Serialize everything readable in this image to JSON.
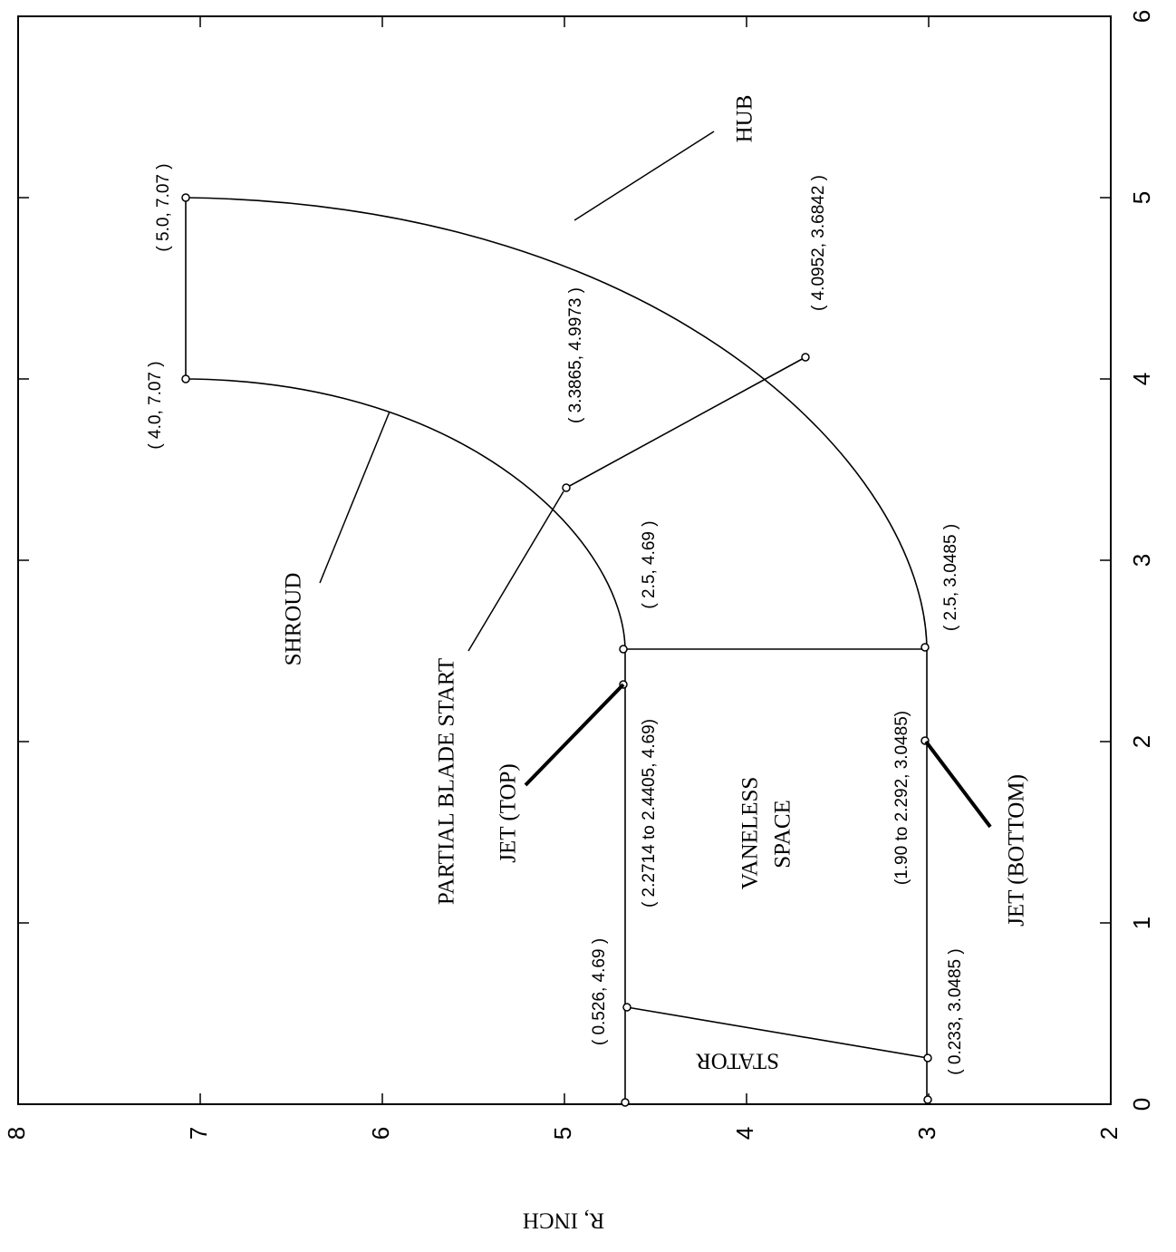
{
  "axes": {
    "y_title": "R, INCH",
    "x_ticks": [
      "0",
      "1",
      "2",
      "3",
      "4",
      "5",
      "6"
    ],
    "r_ticks": [
      "8",
      "7",
      "6",
      "5",
      "4",
      "3",
      "2"
    ]
  },
  "labels": {
    "hub": "HUB",
    "shroud": "SHROUD",
    "partial_blade_start": "PARTIAL BLADE START",
    "jet_top": "JET (TOP)",
    "jet_bottom": "JET (BOTTOM)",
    "vaneless_1": "VANELESS",
    "vaneless_2": "SPACE",
    "stator": "STATOR"
  },
  "points": {
    "p_5_707": "( 5.0, 7.07 )",
    "p_4_707": "( 4.0, 7.07 )",
    "p_shroud_blade": "( 3.3865, 4.9973 )",
    "p_hub_blade": "( 4.0952, 3.6842 )",
    "p_25_469": "( 2.5, 4.69 )",
    "p_25_30485": "( 2.5, 3.0485 )",
    "jet_top_range": "( 2.2714 to 2.4405, 4.69)",
    "jet_bottom_range": "(1.90 to 2.292, 3.0485)",
    "p_0526_469": "( 0.526, 4.69 )",
    "p_0233_30485": "( 0.233, 3.0485 )"
  }
}
